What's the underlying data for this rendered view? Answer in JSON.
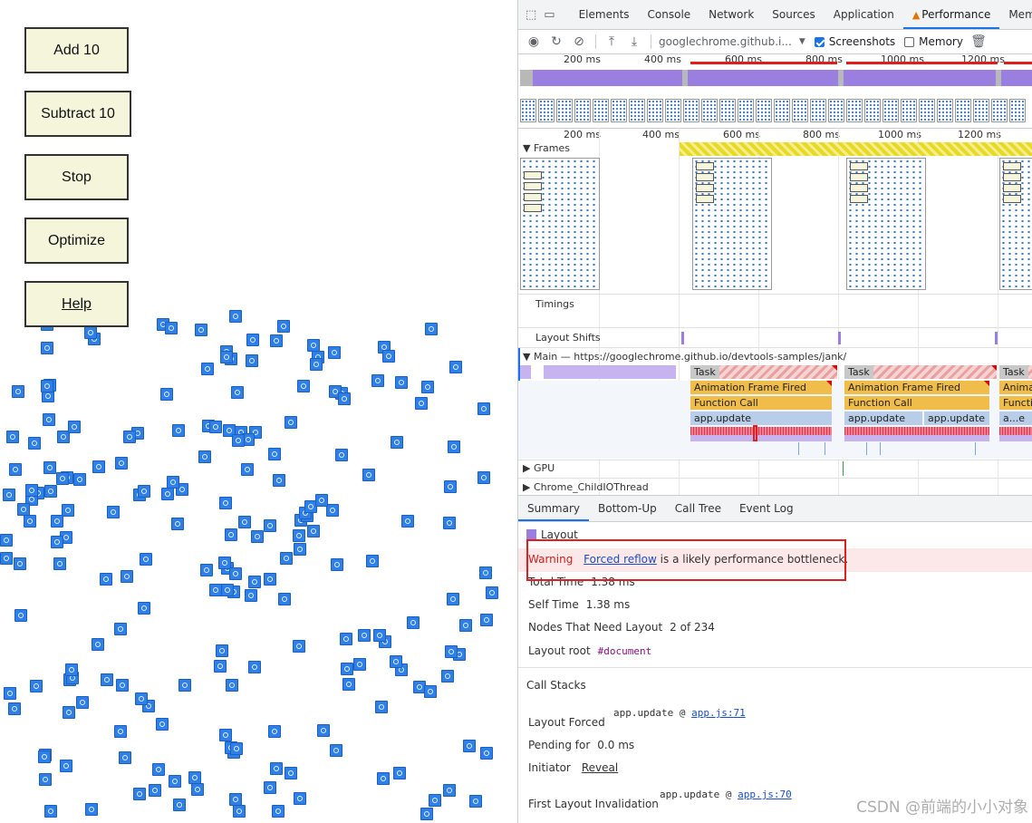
{
  "demo": {
    "buttons": [
      {
        "label": "Add 10"
      },
      {
        "label": "Subtract 10"
      },
      {
        "label": "Stop"
      },
      {
        "label": "Optimize"
      },
      {
        "label": "Help"
      }
    ]
  },
  "devtools": {
    "tabs": [
      "Elements",
      "Console",
      "Sources",
      "Application",
      "Performance",
      "Mem"
    ],
    "tabs_network": "Network",
    "active_tab": "Performance",
    "toolbar": {
      "url": "googlechrome.github.i...",
      "screenshots_label": "Screenshots",
      "screenshots_checked": true,
      "memory_label": "Memory",
      "memory_checked": false
    },
    "overview_ruler": [
      "200 ms",
      "400 ms",
      "600 ms",
      "800 ms",
      "1000 ms",
      "1200 ms"
    ],
    "flame_ruler": [
      "200 ms",
      "400 ms",
      "600 ms",
      "800 ms",
      "1000 ms",
      "1200 ms"
    ],
    "tracks": {
      "frames": "Frames",
      "timings": "Timings",
      "layout_shifts": "Layout Shifts",
      "main": "Main — https://googlechrome.github.io/devtools-samples/jank/",
      "gpu": "GPU",
      "child_io": "Chrome_ChildIOThread"
    },
    "flame": {
      "task": "Task",
      "animation_frame": "Animation Frame Fired",
      "animation_frame_short": "Animat",
      "function_call": "Function Call",
      "function_call_short": "Functi",
      "app_update": "app.update",
      "app_update_short": "a...e"
    },
    "details": {
      "tabs": [
        "Summary",
        "Bottom-Up",
        "Call Tree",
        "Event Log"
      ],
      "active_tab": "Summary",
      "category": "Layout",
      "category_color": "#9b7fe0",
      "warning_label": "Warning",
      "warning_link": "Forced reflow",
      "warning_text": "is a likely performance bottleneck.",
      "total_time_label": "Total Time",
      "total_time": "1.38 ms",
      "self_time_label": "Self Time",
      "self_time": "1.38 ms",
      "nodes_label": "Nodes That Need Layout",
      "nodes_value": "2 of 234",
      "layout_root_label": "Layout root",
      "layout_root_value": "#document",
      "call_stacks_title": "Call Stacks",
      "layout_forced_label": "Layout Forced",
      "layout_forced_fn": "app.update @",
      "layout_forced_link": "app.js:71",
      "pending_label": "Pending for",
      "pending_value": "0.0 ms",
      "initiator_label": "Initiator",
      "initiator_link": "Reveal",
      "first_invalidation_label": "First Layout Invalidation",
      "first_invalidation_fn": "app.update @",
      "first_invalidation_link": "app.js:70"
    }
  },
  "watermark": "CSDN @前端的小小对象"
}
